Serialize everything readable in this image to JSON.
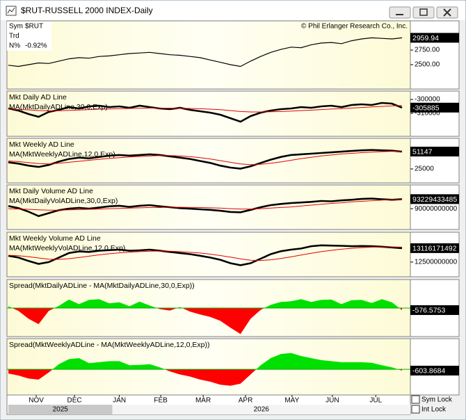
{
  "window": {
    "title": "$RUT-RUSSELL 2000 INDEX-Daily",
    "info": [
      {
        "label": "Sym",
        "value": "$RUT"
      },
      {
        "label": "Trd"
      },
      {
        "label": "N%",
        "value": "-0.92%"
      }
    ],
    "copyright": "© Phil Erlanger Research Co., Inc.",
    "checkboxes": [
      "Sym Lock",
      "Int Lock"
    ]
  },
  "time_axis": {
    "xlim": [
      0,
      39
    ],
    "xticks": [
      {
        "value": 2.76,
        "label": "NOV"
      },
      {
        "value": 6.55,
        "label": "DEC"
      },
      {
        "value": 11.0,
        "label": "JAN"
      },
      {
        "value": 15.1,
        "label": "FEB"
      },
      {
        "value": 19.3,
        "label": "MAR"
      },
      {
        "value": 23.5,
        "label": "APR"
      },
      {
        "value": 28.1,
        "label": "MAY"
      },
      {
        "value": 32.1,
        "label": "JUN"
      },
      {
        "value": 36.4,
        "label": "JUL"
      }
    ],
    "years": [
      {
        "value": 0,
        "label": "2025"
      },
      {
        "value": 10.3,
        "label": "2026"
      }
    ]
  },
  "chart_data": [
    {
      "type": "line",
      "ylim": [
        2083,
        3250
      ],
      "yticks": [
        {
          "value": 2750,
          "label": "2750.00"
        },
        {
          "value": 2500,
          "label": "2500.00"
        }
      ],
      "series": [
        {
          "color": "#000000",
          "values": [
            2490,
            2470,
            2500,
            2530,
            2520,
            2560,
            2600,
            2620,
            2610,
            2640,
            2650,
            2670,
            2690,
            2700,
            2710,
            2690,
            2670,
            2660,
            2640,
            2620,
            2580,
            2540,
            2500,
            2470,
            2560,
            2640,
            2710,
            2760,
            2800,
            2790,
            2840,
            2870,
            2880,
            2860,
            2910,
            2940,
            2960,
            2950,
            2940,
            2959.94
          ]
        }
      ]
    },
    {
      "type": "line",
      "ylim": [
        -326500,
        -294000
      ],
      "yticks": [
        -300000,
        -310000
      ],
      "series": [
        {
          "name": "Mkt Daily AD Line",
          "color": "#000000",
          "values": [
            -306500,
            -308000,
            -310500,
            -312500,
            -309000,
            -307500,
            -305500,
            -306500,
            -305000,
            -304500,
            -305500,
            -305000,
            -306000,
            -304500,
            -305500,
            -306500,
            -307000,
            -306000,
            -307500,
            -308500,
            -309500,
            -311000,
            -313500,
            -316000,
            -312000,
            -309500,
            -308000,
            -307000,
            -306500,
            -305500,
            -306000,
            -305000,
            -304500,
            -305500,
            -304000,
            -303500,
            -304000,
            -302500,
            -303000,
            -305885
          ]
        },
        {
          "name": "MA(MktDailyADLine,30,0,Exp)",
          "color": "#e00000",
          "values": [
            -307000,
            -307200,
            -307500,
            -308000,
            -308200,
            -308100,
            -307900,
            -307600,
            -307300,
            -307000,
            -306800,
            -306600,
            -306500,
            -306300,
            -306200,
            -306200,
            -306300,
            -306300,
            -306500,
            -306700,
            -307000,
            -307400,
            -308000,
            -308700,
            -309000,
            -309000,
            -308900,
            -308700,
            -308400,
            -308000,
            -307700,
            -307300,
            -306900,
            -306600,
            -306200,
            -305800,
            -305400,
            -305000,
            -304600,
            -304400
          ]
        }
      ]
    },
    {
      "type": "line",
      "ylim": [
        4000,
        71000
      ],
      "yticks": [
        25000
      ],
      "series": [
        {
          "name": "Mkt Weekly AD Line",
          "color": "#000000",
          "values": [
            35000,
            33000,
            30000,
            28000,
            31000,
            36000,
            40000,
            42000,
            41000,
            43000,
            45000,
            46000,
            45000,
            46000,
            47000,
            46000,
            44000,
            42000,
            40000,
            37000,
            34000,
            30000,
            27000,
            25500,
            29000,
            34000,
            39000,
            43000,
            46000,
            47000,
            48000,
            49000,
            50000,
            51000,
            52000,
            53000,
            53500,
            53000,
            52500,
            51147
          ]
        },
        {
          "name": "MA(MktWeeklyADLine,12,0,Exp)",
          "color": "#e00000",
          "values": [
            37000,
            36000,
            34500,
            33000,
            32500,
            33500,
            35000,
            36500,
            38000,
            39500,
            41000,
            42000,
            43000,
            43800,
            44500,
            45000,
            45000,
            44500,
            43500,
            42000,
            40000,
            37500,
            35000,
            32500,
            31500,
            32000,
            33500,
            35500,
            38000,
            40500,
            42500,
            44500,
            46000,
            47500,
            48500,
            49500,
            50300,
            51000,
            51500,
            51800
          ]
        }
      ]
    },
    {
      "type": "line",
      "ylim": [
        83000000000,
        98000000000
      ],
      "yticks": [
        90000000000
      ],
      "series": [
        {
          "name": "Mkt Daily Volume AD Line",
          "color": "#000000",
          "values": [
            90900000000,
            90200000000,
            89000000000,
            87500000000,
            88500000000,
            89500000000,
            90000000000,
            90300000000,
            90000000000,
            90400000000,
            90800000000,
            91000000000,
            90600000000,
            91000000000,
            91200000000,
            90800000000,
            90500000000,
            90200000000,
            90000000000,
            89800000000,
            89600000000,
            89300000000,
            88900000000,
            88800000000,
            89600000000,
            90500000000,
            91200000000,
            91600000000,
            91900000000,
            92100000000,
            92300000000,
            92600000000,
            92500000000,
            92800000000,
            93000000000,
            93300000000,
            93400000000,
            93200000000,
            93000000000,
            93229433485
          ]
        },
        {
          "name": "MA(MktDailyVolADLine,30,0,Exp)",
          "color": "#e00000",
          "values": [
            90000000000,
            89900000000,
            89800000000,
            89600000000,
            89500000000,
            89500000000,
            89600000000,
            89700000000,
            89800000000,
            89900000000,
            90000000000,
            90100000000,
            90200000000,
            90300000000,
            90400000000,
            90400000000,
            90500000000,
            90500000000,
            90400000000,
            90400000000,
            90300000000,
            90200000000,
            90000000000,
            89900000000,
            89900000000,
            90000000000,
            90200000000,
            90400000000,
            90600000000,
            90900000000,
            91200000000,
            91500000000,
            91800000000,
            92000000000,
            92300000000,
            92500000000,
            92700000000,
            92900000000,
            93000000000,
            93100000000
          ]
        }
      ]
    },
    {
      "type": "line",
      "ylim": [
        11850000000,
        13820000000
      ],
      "yticks": [
        12500000000
      ],
      "series": [
        {
          "name": "Mkt Weekly Volume AD Line",
          "color": "#000000",
          "values": [
            12780000000,
            12700000000,
            12550000000,
            12420000000,
            12500000000,
            12700000000,
            12900000000,
            12970000000,
            12950000000,
            13000000000,
            13030000000,
            13050000000,
            13000000000,
            13020000000,
            13050000000,
            13000000000,
            12950000000,
            12900000000,
            12850000000,
            12780000000,
            12700000000,
            12600000000,
            12450000000,
            12360000000,
            12450000000,
            12650000000,
            12850000000,
            12980000000,
            13050000000,
            13100000000,
            13200000000,
            13240000000,
            13230000000,
            13220000000,
            13200000000,
            13210000000,
            13200000000,
            13180000000,
            13150000000,
            13116171492
          ]
        },
        {
          "name": "MA(MktWeeklyVolADLine,12,0,Exp)",
          "color": "#e00000",
          "values": [
            12800000000,
            12780000000,
            12740000000,
            12680000000,
            12630000000,
            12620000000,
            12650000000,
            12700000000,
            12760000000,
            12820000000,
            12870000000,
            12910000000,
            12940000000,
            12960000000,
            12980000000,
            12990000000,
            12980000000,
            12960000000,
            12930000000,
            12900000000,
            12850000000,
            12790000000,
            12720000000,
            12640000000,
            12580000000,
            12570000000,
            12600000000,
            12660000000,
            12730000000,
            12810000000,
            12890000000,
            12960000000,
            13020000000,
            13070000000,
            13110000000,
            13140000000,
            13160000000,
            13170000000,
            13170000000,
            13160000000
          ]
        }
      ]
    },
    {
      "type": "area",
      "ylim": [
        -8000,
        8000
      ],
      "colors": [
        "#00e000",
        "#ff0000"
      ],
      "series": [
        {
          "name": "Spread(MktDailyADLine - MA(MktDailyADLine,30,0,Exp))",
          "color": "#e00000",
          "values": [
            500,
            -800,
            -3000,
            -4500,
            -800,
            600,
            2400,
            1100,
            2300,
            2500,
            1300,
            1600,
            500,
            1800,
            700,
            -300,
            -700,
            300,
            -1000,
            -1800,
            -2500,
            -3600,
            -5500,
            -7300,
            -3000,
            -500,
            900,
            1700,
            1900,
            2500,
            1700,
            2300,
            2400,
            1100,
            2200,
            2300,
            1400,
            2500,
            1600,
            -576.5753
          ]
        }
      ]
    },
    {
      "type": "area",
      "ylim": [
        -12500,
        15000
      ],
      "colors": [
        "#00e000",
        "#ff0000"
      ],
      "series": [
        {
          "name": "Spread(MktWeeklyADLine - MA(MktWeeklyADLine,12,0,Exp))",
          "color": "#e00000",
          "values": [
            -2000,
            -3000,
            -4500,
            -5000,
            -1500,
            2500,
            5000,
            5500,
            3000,
            3500,
            4000,
            4000,
            2000,
            2200,
            2500,
            1000,
            -1000,
            -2500,
            -3500,
            -5000,
            -6000,
            -7500,
            -8000,
            -7000,
            -2500,
            2000,
            5500,
            7500,
            8000,
            6500,
            5500,
            4500,
            4000,
            3500,
            3500,
            3500,
            3200,
            2000,
            1000,
            -603.8684
          ]
        }
      ]
    }
  ]
}
